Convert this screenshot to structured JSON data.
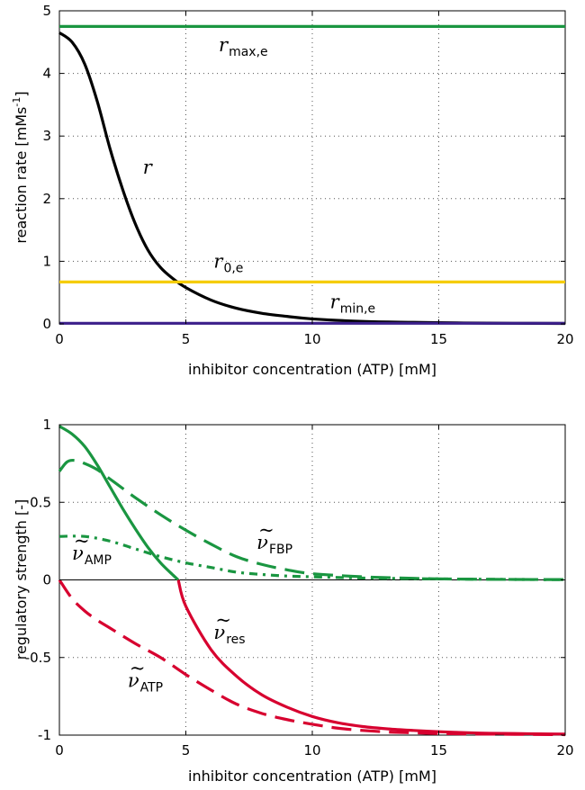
{
  "chart_data": [
    {
      "type": "line",
      "xlabel": "inhibitor concentration (ATP) [mM]",
      "ylabel": "reaction rate [mMs-1]",
      "ylabel_main": "reaction rate [mMs",
      "ylabel_sup": "-1",
      "ylabel_end": "]",
      "xlim": [
        0,
        20
      ],
      "ylim": [
        0,
        5
      ],
      "xticks": [
        0,
        5,
        10,
        15,
        20
      ],
      "xtick_labels": [
        "0",
        "5",
        "10",
        "15",
        "20"
      ],
      "yticks": [
        0,
        1,
        2,
        3,
        4,
        5
      ],
      "ytick_labels": [
        "0",
        "1",
        "2",
        "3",
        "4",
        "5"
      ],
      "grid": true,
      "series": [
        {
          "name": "r",
          "color": "#000000",
          "dash": "solid",
          "x": [
            0,
            0.5,
            1,
            1.5,
            2,
            2.5,
            3,
            3.5,
            4,
            4.5,
            5,
            6,
            7,
            8,
            9,
            10,
            12,
            14,
            16,
            18,
            20
          ],
          "y": [
            4.65,
            4.5,
            4.15,
            3.55,
            2.8,
            2.15,
            1.6,
            1.18,
            0.9,
            0.72,
            0.58,
            0.38,
            0.25,
            0.17,
            0.12,
            0.08,
            0.04,
            0.025,
            0.015,
            0.01,
            0.007
          ]
        },
        {
          "name": "r_max,e",
          "color": "#1a9641",
          "dash": "solid",
          "x": [
            0,
            20
          ],
          "y": [
            4.75,
            4.75
          ]
        },
        {
          "name": "r_0,e",
          "color": "#f5cc00",
          "dash": "solid",
          "x": [
            0,
            20
          ],
          "y": [
            0.67,
            0.67
          ]
        },
        {
          "name": "r_min,e",
          "color": "#3b1f8a",
          "dash": "solid",
          "x": [
            0,
            20
          ],
          "y": [
            0.01,
            0.01
          ]
        }
      ],
      "annotations": [
        {
          "main": "r",
          "sub": "max,e",
          "x": 6.3,
          "y": 4.35
        },
        {
          "main": "r",
          "sub": "",
          "x": 3.3,
          "y": 2.4
        },
        {
          "main": "r",
          "sub": "0,e",
          "x": 6.1,
          "y": 0.9
        },
        {
          "main": "r",
          "sub": "min,e",
          "x": 10.7,
          "y": 0.25
        }
      ]
    },
    {
      "type": "line",
      "xlabel": "inhibitor concentration (ATP) [mM]",
      "ylabel": "regulatory strength [-]",
      "xlim": [
        0,
        20
      ],
      "ylim": [
        -1,
        1
      ],
      "xticks": [
        0,
        5,
        10,
        15,
        20
      ],
      "xtick_labels": [
        "0",
        "5",
        "10",
        "15",
        "20"
      ],
      "yticks": [
        -1,
        -0.5,
        0,
        0.5,
        1
      ],
      "ytick_labels": [
        "-1",
        "-0.5",
        "0",
        "0.5",
        "1"
      ],
      "grid": true,
      "series": [
        {
          "name": "ν̃_res (positive)",
          "color": "#1a9641",
          "dash": "solid",
          "x": [
            0,
            0.5,
            1,
            1.5,
            2,
            2.5,
            3,
            3.5,
            4,
            4.5,
            4.7
          ],
          "y": [
            0.99,
            0.94,
            0.86,
            0.74,
            0.6,
            0.46,
            0.33,
            0.21,
            0.11,
            0.03,
            0
          ]
        },
        {
          "name": "ν̃_res (negative)",
          "color": "#d7002f",
          "dash": "solid",
          "x": [
            4.7,
            5,
            6,
            7,
            8,
            9,
            10,
            11,
            12,
            13,
            14,
            15,
            16,
            17,
            18,
            19,
            20
          ],
          "y": [
            0,
            -0.17,
            -0.45,
            -0.62,
            -0.74,
            -0.82,
            -0.88,
            -0.92,
            -0.945,
            -0.96,
            -0.97,
            -0.978,
            -0.984,
            -0.988,
            -0.99,
            -0.992,
            -0.993
          ]
        },
        {
          "name": "ν̃_FBP",
          "color": "#1a9641",
          "dash": "long",
          "x": [
            0,
            0.3,
            0.6,
            1,
            1.5,
            2,
            2.5,
            3,
            4,
            5,
            6,
            7,
            8,
            9,
            10,
            12,
            14,
            16,
            18,
            20
          ],
          "y": [
            0.7,
            0.76,
            0.77,
            0.75,
            0.71,
            0.65,
            0.59,
            0.53,
            0.42,
            0.32,
            0.23,
            0.15,
            0.1,
            0.065,
            0.04,
            0.02,
            0.01,
            0.005,
            0.003,
            0.002
          ]
        },
        {
          "name": "ν̃_AMP",
          "color": "#1a9641",
          "dash": "dashdot",
          "x": [
            0,
            1,
            2,
            3,
            4,
            5,
            6,
            7,
            8,
            9,
            10,
            12,
            14,
            16,
            18,
            20
          ],
          "y": [
            0.28,
            0.28,
            0.25,
            0.2,
            0.15,
            0.11,
            0.08,
            0.05,
            0.035,
            0.025,
            0.02,
            0.012,
            0.008,
            0.005,
            0.003,
            0.002
          ]
        },
        {
          "name": "ν̃_ATP",
          "color": "#d7002f",
          "dash": "long",
          "x": [
            0,
            0.5,
            1,
            1.5,
            2,
            3,
            4,
            5,
            6,
            7,
            8,
            9,
            10,
            11,
            12,
            13,
            14,
            15,
            16,
            18,
            20
          ],
          "y": [
            0,
            -0.12,
            -0.2,
            -0.26,
            -0.31,
            -0.41,
            -0.5,
            -0.61,
            -0.71,
            -0.8,
            -0.86,
            -0.9,
            -0.93,
            -0.955,
            -0.97,
            -0.98,
            -0.985,
            -0.99,
            -0.992,
            -0.995,
            -0.997
          ]
        }
      ],
      "zero_line": true,
      "annotations": [
        {
          "main": "ν",
          "sub": "FBP",
          "x": 7.8,
          "y": 0.2
        },
        {
          "main": "ν",
          "sub": "AMP",
          "x": 0.5,
          "y": 0.13
        },
        {
          "main": "ν",
          "sub": "res",
          "x": 6.1,
          "y": -0.38
        },
        {
          "main": "ν",
          "sub": "ATP",
          "x": 2.7,
          "y": -0.69
        }
      ]
    }
  ]
}
